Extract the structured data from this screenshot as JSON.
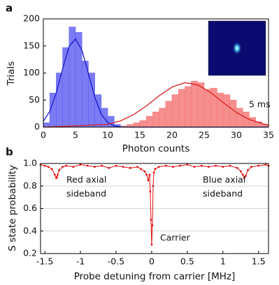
{
  "chart_data": [
    {
      "type": "histogram",
      "panel_label": "a",
      "xlabel": "Photon counts",
      "ylabel": "Trials",
      "xlim": [
        0,
        35
      ],
      "ylim": [
        0,
        200
      ],
      "xticks": [
        0,
        5,
        10,
        15,
        20,
        25,
        30,
        35
      ],
      "yticks": [
        0,
        50,
        100,
        150,
        200
      ],
      "series": [
        {
          "color": "#6464f2",
          "bins": [
            0,
            1,
            2,
            3,
            4,
            5,
            6,
            7,
            8,
            9,
            10,
            11,
            12
          ],
          "values": [
            8,
            63,
            100,
            147,
            185,
            175,
            122,
            100,
            60,
            35,
            20,
            5
          ]
        },
        {
          "color": "#f57a7a",
          "bins": [
            12,
            13,
            14,
            15,
            16,
            17,
            18,
            19,
            20,
            21,
            22,
            23,
            24,
            25,
            26,
            27,
            28,
            29,
            30,
            31,
            32,
            33,
            34,
            35
          ],
          "values": [
            2,
            5,
            8,
            12,
            20,
            28,
            35,
            48,
            60,
            70,
            75,
            85,
            82,
            70,
            72,
            63,
            60,
            50,
            35,
            28,
            18,
            10,
            5
          ]
        }
      ],
      "fits": [
        {
          "color": "#1a1acc",
          "x": [
            0,
            1,
            2,
            3,
            4,
            5,
            6,
            7,
            8,
            9,
            10,
            11,
            12,
            13,
            14,
            35
          ],
          "y": [
            11,
            29,
            63,
            108,
            149,
            163,
            142,
            99,
            55,
            24,
            8.5,
            2.4,
            0.5,
            0.1,
            0,
            0
          ]
        },
        {
          "color": "#dd2020",
          "x": [
            0,
            10,
            12,
            14,
            16,
            18,
            20,
            22,
            24,
            26,
            28,
            30,
            32,
            34,
            35
          ],
          "y": [
            0,
            5,
            11.6,
            23,
            39,
            58,
            74,
            82,
            78,
            64,
            45,
            27,
            14,
            6.6,
            4
          ]
        }
      ],
      "annotations": [
        "5 ms"
      ]
    },
    {
      "type": "line",
      "panel_label": "b",
      "xlabel": "Probe detuning from carrier [MHz]",
      "ylabel": "S state probability",
      "xlim": [
        -1.56,
        1.64
      ],
      "ylim": [
        0.2,
        1.0
      ],
      "xticks": [
        -1.5,
        -1,
        -0.5,
        0,
        0.5,
        1,
        1.5
      ],
      "yticks": [
        0.2,
        0.4,
        0.6,
        0.8,
        {
          "value": 1.0,
          "label": "1.0"
        }
      ],
      "grid": true,
      "color": "#e01010",
      "x": [
        -1.56,
        -1.5,
        -1.45,
        -1.4,
        -1.36,
        -1.34,
        -1.33,
        -1.32,
        -1.3,
        -1.25,
        -1.2,
        -1.1,
        -1.0,
        -0.9,
        -0.8,
        -0.7,
        -0.6,
        -0.5,
        -0.4,
        -0.3,
        -0.2,
        -0.15,
        -0.1,
        -0.07,
        -0.05,
        -0.03,
        -0.02,
        -0.01,
        0,
        0.01,
        0.02,
        0.03,
        0.05,
        0.1,
        0.2,
        0.3,
        0.4,
        0.5,
        0.6,
        0.7,
        0.8,
        0.9,
        1.0,
        1.1,
        1.2,
        1.25,
        1.28,
        1.3,
        1.32,
        1.35,
        1.4,
        1.5,
        1.6,
        1.64
      ],
      "values": [
        0.99,
        0.98,
        0.97,
        0.95,
        0.9,
        0.87,
        0.88,
        0.9,
        0.94,
        0.97,
        0.98,
        0.97,
        0.99,
        0.98,
        0.97,
        0.98,
        0.96,
        0.98,
        0.97,
        0.96,
        0.97,
        0.95,
        0.93,
        0.9,
        0.85,
        0.9,
        0.75,
        0.5,
        0.28,
        0.45,
        0.8,
        0.92,
        0.95,
        0.97,
        0.98,
        0.97,
        0.98,
        0.99,
        0.97,
        0.98,
        0.97,
        0.98,
        0.97,
        0.98,
        0.96,
        0.93,
        0.9,
        0.87,
        0.89,
        0.94,
        0.97,
        0.98,
        0.99,
        0.98
      ],
      "annotations": [
        [
          "Red axial",
          "sideband"
        ],
        [
          "Blue axial",
          "sideband"
        ],
        [
          "Carrier"
        ]
      ]
    }
  ]
}
